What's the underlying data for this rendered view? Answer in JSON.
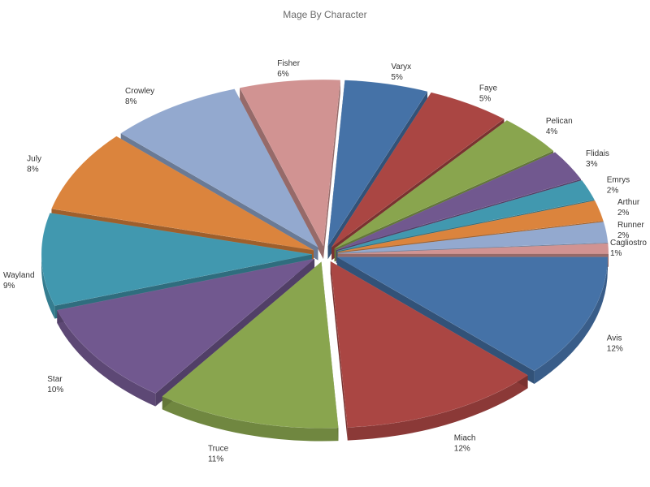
{
  "chart_data": {
    "type": "pie",
    "style": "3d-exploded",
    "title": "Mage By Character",
    "legend": "none",
    "slices": [
      {
        "name": "Avis",
        "value": 12,
        "label": "12%",
        "color": "#4572a7"
      },
      {
        "name": "Miach",
        "value": 12,
        "label": "12%",
        "color": "#aa4643"
      },
      {
        "name": "Truce",
        "value": 11,
        "label": "11%",
        "color": "#89a54e"
      },
      {
        "name": "Star",
        "value": 10,
        "label": "10%",
        "color": "#71588f"
      },
      {
        "name": "Wayland",
        "value": 9,
        "label": "9%",
        "color": "#4198af"
      },
      {
        "name": "July",
        "value": 8,
        "label": "8%",
        "color": "#db843d"
      },
      {
        "name": "Crowley",
        "value": 8,
        "label": "8%",
        "color": "#93a9cf"
      },
      {
        "name": "Fisher",
        "value": 6,
        "label": "6%",
        "color": "#d19392"
      },
      {
        "name": "Varyx",
        "value": 5,
        "label": "5%",
        "color": "#4572a7"
      },
      {
        "name": "Faye",
        "value": 5,
        "label": "5%",
        "color": "#aa4643"
      },
      {
        "name": "Pelican",
        "value": 4,
        "label": "4%",
        "color": "#89a54e"
      },
      {
        "name": "Flidais",
        "value": 3,
        "label": "3%",
        "color": "#71588f"
      },
      {
        "name": "Emrys",
        "value": 2,
        "label": "2%",
        "color": "#4198af"
      },
      {
        "name": "Arthur",
        "value": 2,
        "label": "2%",
        "color": "#db843d"
      },
      {
        "name": "Runner",
        "value": 2,
        "label": "2%",
        "color": "#93a9cf"
      },
      {
        "name": "Cagliostro",
        "value": 1,
        "label": "1%",
        "color": "#d19392"
      }
    ]
  }
}
